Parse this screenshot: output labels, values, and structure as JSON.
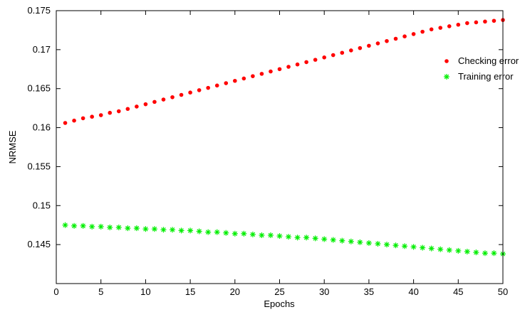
{
  "chart_data": {
    "type": "scatter",
    "xlabel": "Epochs",
    "ylabel": "NRMSE",
    "xlim": [
      0,
      50
    ],
    "ylim": [
      0.14,
      0.175
    ],
    "xticks": [
      0,
      5,
      10,
      15,
      20,
      25,
      30,
      35,
      40,
      45,
      50
    ],
    "yticks": [
      0.145,
      0.15,
      0.155,
      0.16,
      0.165,
      0.17,
      0.175
    ],
    "xtick_labels": [
      "0",
      "5",
      "10",
      "15",
      "20",
      "25",
      "30",
      "35",
      "40",
      "45",
      "50"
    ],
    "ytick_labels": [
      "0.145",
      "0.15",
      "0.155",
      "0.16",
      "0.165",
      "0.17",
      "0.175"
    ],
    "grid": false,
    "legend_position": "top-right",
    "series": [
      {
        "name": "Checking error",
        "marker": "dot",
        "color": "#ff0000",
        "x": [
          1,
          2,
          3,
          4,
          5,
          6,
          7,
          8,
          9,
          10,
          11,
          12,
          13,
          14,
          15,
          16,
          17,
          18,
          19,
          20,
          21,
          22,
          23,
          24,
          25,
          26,
          27,
          28,
          29,
          30,
          31,
          32,
          33,
          34,
          35,
          36,
          37,
          38,
          39,
          40,
          41,
          42,
          43,
          44,
          45,
          46,
          47,
          48,
          49,
          50
        ],
        "y": [
          0.1606,
          0.1609,
          0.1612,
          0.1614,
          0.1616,
          0.1619,
          0.1621,
          0.1624,
          0.1627,
          0.163,
          0.1633,
          0.1636,
          0.1639,
          0.1642,
          0.1645,
          0.1648,
          0.1651,
          0.1654,
          0.1657,
          0.166,
          0.1663,
          0.1666,
          0.1669,
          0.1672,
          0.1675,
          0.1678,
          0.1681,
          0.1684,
          0.1687,
          0.169,
          0.1693,
          0.1696,
          0.1699,
          0.1702,
          0.1705,
          0.1708,
          0.1711,
          0.1714,
          0.1717,
          0.172,
          0.1723,
          0.1726,
          0.1728,
          0.173,
          0.1732,
          0.1734,
          0.1735,
          0.1736,
          0.1737,
          0.1738
        ]
      },
      {
        "name": "Training error",
        "marker": "asterisk",
        "color": "#00ee00",
        "x": [
          1,
          2,
          3,
          4,
          5,
          6,
          7,
          8,
          9,
          10,
          11,
          12,
          13,
          14,
          15,
          16,
          17,
          18,
          19,
          20,
          21,
          22,
          23,
          24,
          25,
          26,
          27,
          28,
          29,
          30,
          31,
          32,
          33,
          34,
          35,
          36,
          37,
          38,
          39,
          40,
          41,
          42,
          43,
          44,
          45,
          46,
          47,
          48,
          49,
          50
        ],
        "y": [
          0.1475,
          0.1474,
          0.1474,
          0.1473,
          0.1473,
          0.1472,
          0.1472,
          0.1471,
          0.1471,
          0.147,
          0.147,
          0.1469,
          0.1469,
          0.1468,
          0.1468,
          0.1467,
          0.1466,
          0.1466,
          0.1465,
          0.1464,
          0.1464,
          0.1463,
          0.1462,
          0.1462,
          0.1461,
          0.146,
          0.1459,
          0.1459,
          0.1458,
          0.1457,
          0.1456,
          0.1455,
          0.1454,
          0.1453,
          0.1452,
          0.1451,
          0.145,
          0.1449,
          0.1448,
          0.1447,
          0.1446,
          0.1445,
          0.1444,
          0.1443,
          0.1442,
          0.1441,
          0.144,
          0.1439,
          0.1439,
          0.1438
        ]
      }
    ]
  }
}
